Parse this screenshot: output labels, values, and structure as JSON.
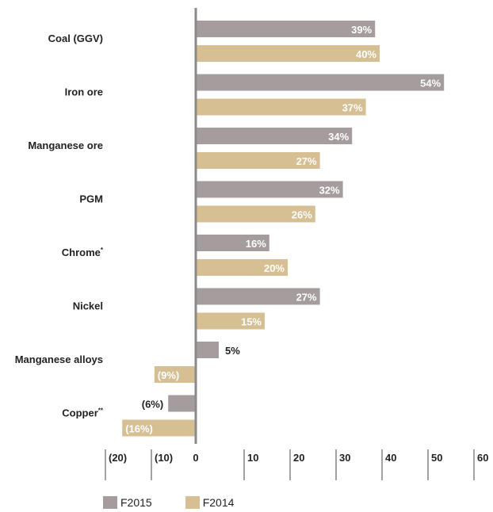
{
  "chart_data": {
    "type": "bar",
    "orientation": "horizontal",
    "categories": [
      "Coal (GGV)",
      "Iron ore",
      "Manganese ore",
      "PGM",
      "Chrome*",
      "Nickel",
      "Manganese alloys",
      "Copper**"
    ],
    "category_display": [
      {
        "text": "Coal (GGV)",
        "sup": ""
      },
      {
        "text": "Iron ore",
        "sup": ""
      },
      {
        "text": "Manganese ore",
        "sup": ""
      },
      {
        "text": "PGM",
        "sup": ""
      },
      {
        "text": "Chrome",
        "sup": "*"
      },
      {
        "text": "Nickel",
        "sup": ""
      },
      {
        "text": "Manganese alloys",
        "sup": ""
      },
      {
        "text": "Copper",
        "sup": "**"
      }
    ],
    "series": [
      {
        "name": "F2015",
        "color": "#a59c9d",
        "values": [
          39,
          54,
          34,
          32,
          16,
          27,
          5,
          -6
        ],
        "labels": [
          "39%",
          "54%",
          "34%",
          "32%",
          "16%",
          "27%",
          "5%",
          "(6%)"
        ]
      },
      {
        "name": "F2014",
        "color": "#d6bf92",
        "values": [
          40,
          37,
          27,
          26,
          20,
          15,
          -9,
          -16
        ],
        "labels": [
          "40%",
          "37%",
          "27%",
          "26%",
          "20%",
          "15%",
          "(9%)",
          "(16%)"
        ]
      }
    ],
    "xlim": [
      -20,
      60
    ],
    "ticks": [
      -20,
      -10,
      0,
      10,
      20,
      30,
      40,
      50,
      60
    ],
    "tick_labels": [
      "(20)",
      "(10)",
      "0",
      "10",
      "20",
      "30",
      "40",
      "50",
      "60"
    ],
    "zero_line_color": "#8a8a8a",
    "legend_position": "bottom-left"
  }
}
